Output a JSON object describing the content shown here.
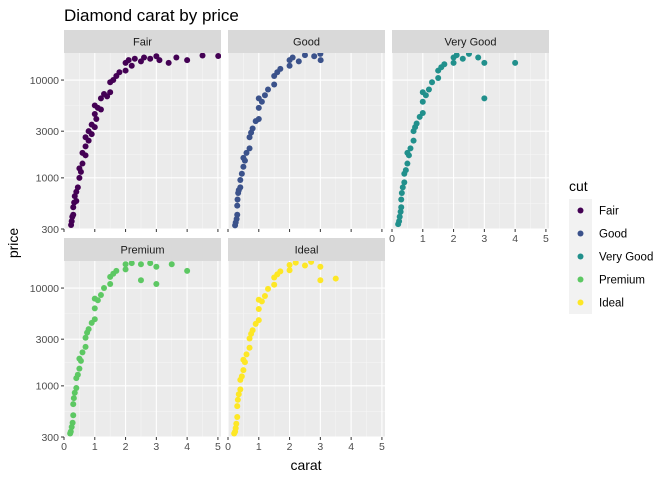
{
  "chart_data": {
    "type": "scatter",
    "title": "Diamond carat by price",
    "xlabel": "carat",
    "ylabel": "price",
    "xlim": [
      0,
      5.1
    ],
    "ylim": [
      300,
      18900
    ],
    "y_scale": "log10",
    "x_ticks": [
      0,
      1,
      2,
      3,
      4,
      5
    ],
    "x_tick_labels": [
      "0",
      "1",
      "2",
      "3",
      "4",
      "5"
    ],
    "y_ticks": [
      300,
      1000,
      3000,
      10000
    ],
    "y_tick_labels": [
      "300",
      "1000",
      "3000",
      "10000"
    ],
    "grid": true,
    "facet_by": "cut",
    "legend": {
      "title": "cut",
      "position": "right",
      "entries": [
        {
          "label": "Fair",
          "color": "#440154"
        },
        {
          "label": "Good",
          "color": "#3B528B"
        },
        {
          "label": "Very Good",
          "color": "#21908C"
        },
        {
          "label": "Premium",
          "color": "#5DC863"
        },
        {
          "label": "Ideal",
          "color": "#FDE725"
        }
      ]
    },
    "series": [
      {
        "name": "Fair",
        "color": "#440154",
        "points": [
          [
            0.23,
            330
          ],
          [
            0.25,
            360
          ],
          [
            0.27,
            400
          ],
          [
            0.3,
            420
          ],
          [
            0.3,
            500
          ],
          [
            0.33,
            560
          ],
          [
            0.35,
            650
          ],
          [
            0.4,
            580
          ],
          [
            0.4,
            720
          ],
          [
            0.45,
            800
          ],
          [
            0.5,
            1000
          ],
          [
            0.5,
            1250
          ],
          [
            0.55,
            1150
          ],
          [
            0.6,
            1400
          ],
          [
            0.6,
            1800
          ],
          [
            0.7,
            1700
          ],
          [
            0.7,
            2100
          ],
          [
            0.7,
            2600
          ],
          [
            0.8,
            2400
          ],
          [
            0.8,
            3000
          ],
          [
            0.9,
            2800
          ],
          [
            0.9,
            3500
          ],
          [
            1.0,
            3300
          ],
          [
            1.0,
            4500
          ],
          [
            1.0,
            5500
          ],
          [
            1.05,
            4000
          ],
          [
            1.1,
            5200
          ],
          [
            1.2,
            5000
          ],
          [
            1.2,
            6500
          ],
          [
            1.3,
            7200
          ],
          [
            1.4,
            6800
          ],
          [
            1.5,
            7500
          ],
          [
            1.5,
            9500
          ],
          [
            1.6,
            10000
          ],
          [
            1.7,
            11000
          ],
          [
            1.8,
            12000
          ],
          [
            2.0,
            12500
          ],
          [
            2.0,
            15000
          ],
          [
            2.1,
            16000
          ],
          [
            2.2,
            14000
          ],
          [
            2.3,
            16500
          ],
          [
            2.5,
            15500
          ],
          [
            2.6,
            17000
          ],
          [
            2.8,
            16500
          ],
          [
            3.0,
            17500
          ],
          [
            3.1,
            16000
          ],
          [
            3.4,
            15000
          ],
          [
            3.65,
            17000
          ],
          [
            4.0,
            16000
          ],
          [
            4.5,
            17800
          ],
          [
            5.01,
            17600
          ]
        ]
      },
      {
        "name": "Good",
        "color": "#3B528B",
        "points": [
          [
            0.23,
            327
          ],
          [
            0.25,
            350
          ],
          [
            0.28,
            380
          ],
          [
            0.3,
            420
          ],
          [
            0.3,
            520
          ],
          [
            0.31,
            600
          ],
          [
            0.33,
            700
          ],
          [
            0.35,
            750
          ],
          [
            0.4,
            800
          ],
          [
            0.4,
            950
          ],
          [
            0.45,
            1100
          ],
          [
            0.5,
            1300
          ],
          [
            0.5,
            1600
          ],
          [
            0.55,
            1500
          ],
          [
            0.6,
            1800
          ],
          [
            0.7,
            2000
          ],
          [
            0.7,
            2600
          ],
          [
            0.75,
            2900
          ],
          [
            0.8,
            3200
          ],
          [
            0.9,
            3800
          ],
          [
            1.0,
            4000
          ],
          [
            1.0,
            5200
          ],
          [
            1.0,
            6500
          ],
          [
            1.1,
            6000
          ],
          [
            1.2,
            7000
          ],
          [
            1.3,
            8000
          ],
          [
            1.5,
            9000
          ],
          [
            1.5,
            11000
          ],
          [
            1.6,
            12000
          ],
          [
            1.7,
            13000
          ],
          [
            2.0,
            14000
          ],
          [
            2.0,
            16000
          ],
          [
            2.1,
            17000
          ],
          [
            2.3,
            15500
          ],
          [
            2.5,
            18000
          ],
          [
            2.8,
            17500
          ],
          [
            3.0,
            18500
          ],
          [
            3.01,
            16000
          ]
        ]
      },
      {
        "name": "Very Good",
        "color": "#21908C",
        "points": [
          [
            0.2,
            336
          ],
          [
            0.23,
            360
          ],
          [
            0.25,
            400
          ],
          [
            0.28,
            450
          ],
          [
            0.3,
            500
          ],
          [
            0.3,
            600
          ],
          [
            0.32,
            700
          ],
          [
            0.35,
            800
          ],
          [
            0.4,
            900
          ],
          [
            0.4,
            1100
          ],
          [
            0.45,
            1200
          ],
          [
            0.5,
            1400
          ],
          [
            0.5,
            1800
          ],
          [
            0.55,
            1700
          ],
          [
            0.6,
            2000
          ],
          [
            0.7,
            2400
          ],
          [
            0.7,
            3000
          ],
          [
            0.75,
            3300
          ],
          [
            0.8,
            3600
          ],
          [
            0.9,
            4200
          ],
          [
            1.0,
            4600
          ],
          [
            1.0,
            6000
          ],
          [
            1.0,
            7500
          ],
          [
            1.1,
            7000
          ],
          [
            1.2,
            8000
          ],
          [
            1.3,
            9500
          ],
          [
            1.5,
            10500
          ],
          [
            1.5,
            12500
          ],
          [
            1.6,
            13500
          ],
          [
            1.7,
            14500
          ],
          [
            2.0,
            15000
          ],
          [
            2.0,
            17000
          ],
          [
            2.1,
            18000
          ],
          [
            2.3,
            16500
          ],
          [
            2.5,
            18500
          ],
          [
            2.8,
            17000
          ],
          [
            3.0,
            15000
          ],
          [
            3.0,
            6500
          ],
          [
            4.0,
            15000
          ]
        ]
      },
      {
        "name": "Premium",
        "color": "#5DC863",
        "points": [
          [
            0.2,
            326
          ],
          [
            0.22,
            340
          ],
          [
            0.25,
            380
          ],
          [
            0.28,
            420
          ],
          [
            0.3,
            500
          ],
          [
            0.3,
            650
          ],
          [
            0.32,
            750
          ],
          [
            0.35,
            850
          ],
          [
            0.4,
            950
          ],
          [
            0.4,
            1200
          ],
          [
            0.45,
            1300
          ],
          [
            0.5,
            1500
          ],
          [
            0.5,
            1900
          ],
          [
            0.55,
            1800
          ],
          [
            0.6,
            2200
          ],
          [
            0.7,
            2500
          ],
          [
            0.7,
            3100
          ],
          [
            0.75,
            3500
          ],
          [
            0.8,
            3800
          ],
          [
            0.9,
            4400
          ],
          [
            1.0,
            4800
          ],
          [
            1.0,
            6200
          ],
          [
            1.0,
            7800
          ],
          [
            1.1,
            7500
          ],
          [
            1.2,
            8500
          ],
          [
            1.3,
            10000
          ],
          [
            1.5,
            11000
          ],
          [
            1.5,
            13000
          ],
          [
            1.6,
            14000
          ],
          [
            1.7,
            15000
          ],
          [
            2.0,
            15500
          ],
          [
            2.0,
            17500
          ],
          [
            2.2,
            18000
          ],
          [
            2.5,
            17500
          ],
          [
            2.5,
            12000
          ],
          [
            2.8,
            18000
          ],
          [
            3.0,
            16500
          ],
          [
            3.0,
            11000
          ],
          [
            3.5,
            17500
          ],
          [
            4.0,
            15000
          ]
        ]
      },
      {
        "name": "Ideal",
        "color": "#FDE725",
        "points": [
          [
            0.2,
            326
          ],
          [
            0.23,
            340
          ],
          [
            0.25,
            370
          ],
          [
            0.27,
            410
          ],
          [
            0.3,
            480
          ],
          [
            0.3,
            620
          ],
          [
            0.32,
            720
          ],
          [
            0.35,
            820
          ],
          [
            0.4,
            920
          ],
          [
            0.4,
            1150
          ],
          [
            0.45,
            1250
          ],
          [
            0.5,
            1450
          ],
          [
            0.5,
            1850
          ],
          [
            0.55,
            1750
          ],
          [
            0.6,
            2100
          ],
          [
            0.7,
            2450
          ],
          [
            0.7,
            3050
          ],
          [
            0.75,
            3400
          ],
          [
            0.8,
            3700
          ],
          [
            0.9,
            4300
          ],
          [
            1.0,
            4700
          ],
          [
            1.0,
            6100
          ],
          [
            1.0,
            7600
          ],
          [
            1.1,
            7300
          ],
          [
            1.2,
            8300
          ],
          [
            1.3,
            9800
          ],
          [
            1.5,
            10800
          ],
          [
            1.5,
            12800
          ],
          [
            1.6,
            13800
          ],
          [
            1.7,
            14800
          ],
          [
            2.0,
            15200
          ],
          [
            2.0,
            17200
          ],
          [
            2.2,
            18200
          ],
          [
            2.5,
            17000
          ],
          [
            2.7,
            18500
          ],
          [
            3.0,
            16500
          ],
          [
            3.0,
            12000
          ],
          [
            3.5,
            12500
          ]
        ]
      }
    ]
  }
}
